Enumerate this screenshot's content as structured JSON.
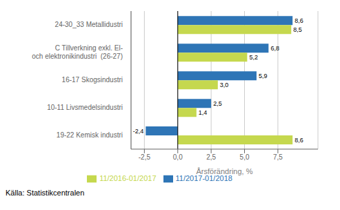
{
  "chart_data": {
    "type": "bar",
    "orientation": "horizontal",
    "categories": [
      "19-22 Kemisk industri",
      "10-11 Livsmedelsindustri",
      "16-17 Skogsindustri",
      "C Tillverkning exkl. El-\noch elektronikindustri  (26-27)",
      "24-30_33 Metallidustri"
    ],
    "series": [
      {
        "name": "11/2017-01/2018",
        "color": "#2E75B6",
        "values": [
          -2.4,
          2.5,
          5.9,
          6.8,
          8.6
        ],
        "value_labels": [
          "-2,4",
          "2,5",
          "5,9",
          "6,8",
          "8,6"
        ]
      },
      {
        "name": "11/2016-01/2017",
        "color": "#C5D84E",
        "values": [
          8.6,
          1.4,
          3.0,
          5.2,
          8.5
        ],
        "value_labels": [
          "8,6",
          "1,4",
          "3,0",
          "5,2",
          "8,5"
        ]
      }
    ],
    "xlabel": "Årsförändring, %",
    "xlim": [
      -3.5,
      10.5
    ],
    "xticks": [
      {
        "value": -2.5,
        "label": "-2,5"
      },
      {
        "value": 0.0,
        "label": "0,0"
      },
      {
        "value": 2.5,
        "label": "2,5"
      },
      {
        "value": 5.0,
        "label": "5,0"
      },
      {
        "value": 7.5,
        "label": "7,5"
      }
    ],
    "grid": true,
    "legend": "bottom",
    "data_labels": true,
    "annotations": [
      "Källa: Statistikcentralen"
    ]
  }
}
